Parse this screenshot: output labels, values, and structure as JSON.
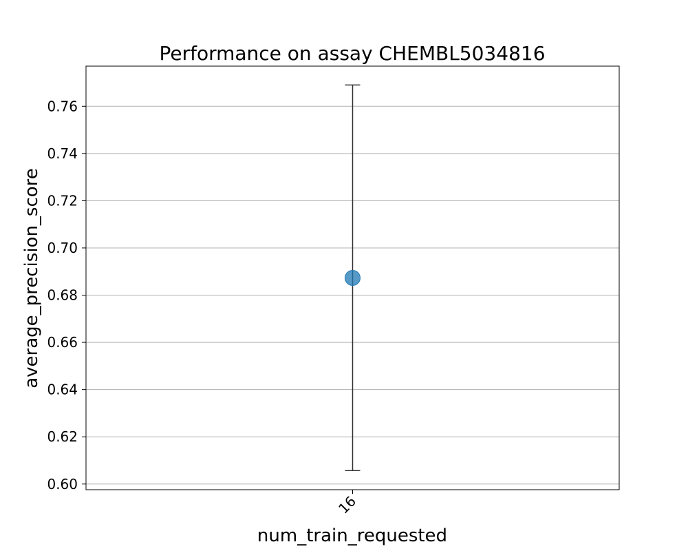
{
  "chart_data": {
    "type": "scatter",
    "title": "Performance on assay CHEMBL5034816",
    "xlabel": "num_train_requested",
    "ylabel": "average_precision_score",
    "categories": [
      "16"
    ],
    "series": [
      {
        "values": [
          0.6873
        ],
        "error_lower": [
          0.6057
        ],
        "error_upper": [
          0.769
        ]
      }
    ],
    "ylim": [
      0.5976,
      0.777
    ],
    "yticks": [
      0.6,
      0.62,
      0.64,
      0.66,
      0.68,
      0.7,
      0.72,
      0.74,
      0.76
    ],
    "ytick_labels": [
      "0.60",
      "0.62",
      "0.64",
      "0.66",
      "0.68",
      "0.70",
      "0.72",
      "0.74",
      "0.76"
    ],
    "grid": "horizontal",
    "marker_color": "#1f77b4",
    "errorbar_color": "#333333",
    "xtick_rotation": "45"
  }
}
